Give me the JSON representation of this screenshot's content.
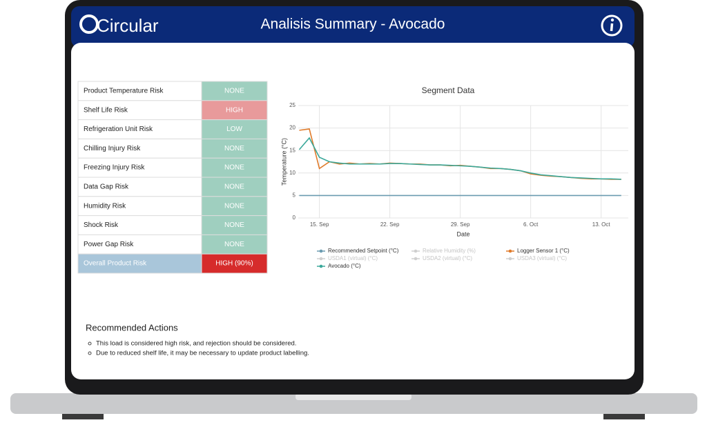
{
  "header": {
    "logo_text": "Circular",
    "title": "Analisis Summary - Avocado"
  },
  "risk_table": {
    "rows": [
      {
        "label": "Product Temperature Risk",
        "status": "NONE",
        "color": "#9fcfbf"
      },
      {
        "label": "Shelf Life Risk",
        "status": "HIGH",
        "color": "#e89a9b"
      },
      {
        "label": "Refrigeration Unit Risk",
        "status": "LOW",
        "color": "#9fcfbf"
      },
      {
        "label": "Chilling Injury Risk",
        "status": "NONE",
        "color": "#9fcfbf"
      },
      {
        "label": "Freezing Injury Risk",
        "status": "NONE",
        "color": "#9fcfbf"
      },
      {
        "label": "Data Gap Risk",
        "status": "NONE",
        "color": "#9fcfbf"
      },
      {
        "label": "Humidity Risk",
        "status": "NONE",
        "color": "#9fcfbf"
      },
      {
        "label": "Shock Risk",
        "status": "NONE",
        "color": "#9fcfbf"
      },
      {
        "label": "Power Gap Risk",
        "status": "NONE",
        "color": "#9fcfbf"
      }
    ],
    "overall": {
      "label": "Overall Product Risk",
      "status": "HIGH (90%)",
      "label_color": "#a9c6da",
      "color": "#d62b2b"
    }
  },
  "chart_data": {
    "type": "line",
    "title": "Segment Data",
    "x_label": "Date",
    "y_label": "Temperature (°C)",
    "x": [
      "13. Sep",
      "14. Sep",
      "15. Sep",
      "16. Sep",
      "17. Sep",
      "18. Sep",
      "19. Sep",
      "20. Sep",
      "21. Sep",
      "22. Sep",
      "23. Sep",
      "24. Sep",
      "25. Sep",
      "26. Sep",
      "27. Sep",
      "28. Sep",
      "29. Sep",
      "30. Sep",
      "1. Oct",
      "2. Oct",
      "3. Oct",
      "4. Oct",
      "5. Oct",
      "6. Oct",
      "7. Oct",
      "8. Oct",
      "9. Oct",
      "10. Oct",
      "11. Oct",
      "12. Oct",
      "13. Oct",
      "14. Oct",
      "15. Oct"
    ],
    "xticks": [
      "15. Sep",
      "22. Sep",
      "29. Sep",
      "6. Oct",
      "13. Oct"
    ],
    "ylim": [
      0,
      25
    ],
    "yticks": [
      0,
      5,
      10,
      15,
      20,
      25
    ],
    "grid": true,
    "series": [
      {
        "name": "Recommended Setpoint (°C)",
        "color": "#6a9bb0",
        "values": [
          5,
          5,
          5,
          5,
          5,
          5,
          5,
          5,
          5,
          5,
          5,
          5,
          5,
          5,
          5,
          5,
          5,
          5,
          5,
          5,
          5,
          5,
          5,
          5,
          5,
          5,
          5,
          5,
          5,
          5,
          5,
          5,
          5
        ]
      },
      {
        "name": "Relative Humidity (%)",
        "visible": false
      },
      {
        "name": "Logger Sensor 1 (°C)",
        "color": "#e07b2a",
        "values": [
          19.5,
          19.8,
          11,
          12.5,
          12,
          12.2,
          12,
          12.1,
          12,
          12.2,
          12.1,
          12,
          12,
          11.8,
          11.8,
          11.6,
          11.7,
          11.5,
          11.3,
          11,
          11,
          10.8,
          10.5,
          9.8,
          9.5,
          9.3,
          9.2,
          9,
          8.8,
          8.7,
          8.7,
          8.6,
          8.6
        ]
      },
      {
        "name": "USDA1 (virtual) (°C)",
        "visible": false
      },
      {
        "name": "USDA2 (virtual) (°C)",
        "visible": false
      },
      {
        "name": "USDA3 (virtual) (°C)",
        "visible": false
      },
      {
        "name": "Avocado (°C)",
        "color": "#3aa89a",
        "values": [
          15.2,
          17.8,
          13.5,
          12.5,
          12.2,
          12,
          12,
          12,
          12,
          12.1,
          12.1,
          12,
          11.9,
          11.8,
          11.8,
          11.7,
          11.6,
          11.5,
          11.3,
          11.1,
          11,
          10.8,
          10.5,
          10,
          9.6,
          9.4,
          9.2,
          9,
          8.9,
          8.8,
          8.7,
          8.7,
          8.6
        ]
      }
    ]
  },
  "actions": {
    "title": "Recommended Actions",
    "items": [
      "This load is considered high risk, and rejection should be considered.",
      "Due to reduced shelf life, it may be necessary to update product labelling."
    ]
  }
}
